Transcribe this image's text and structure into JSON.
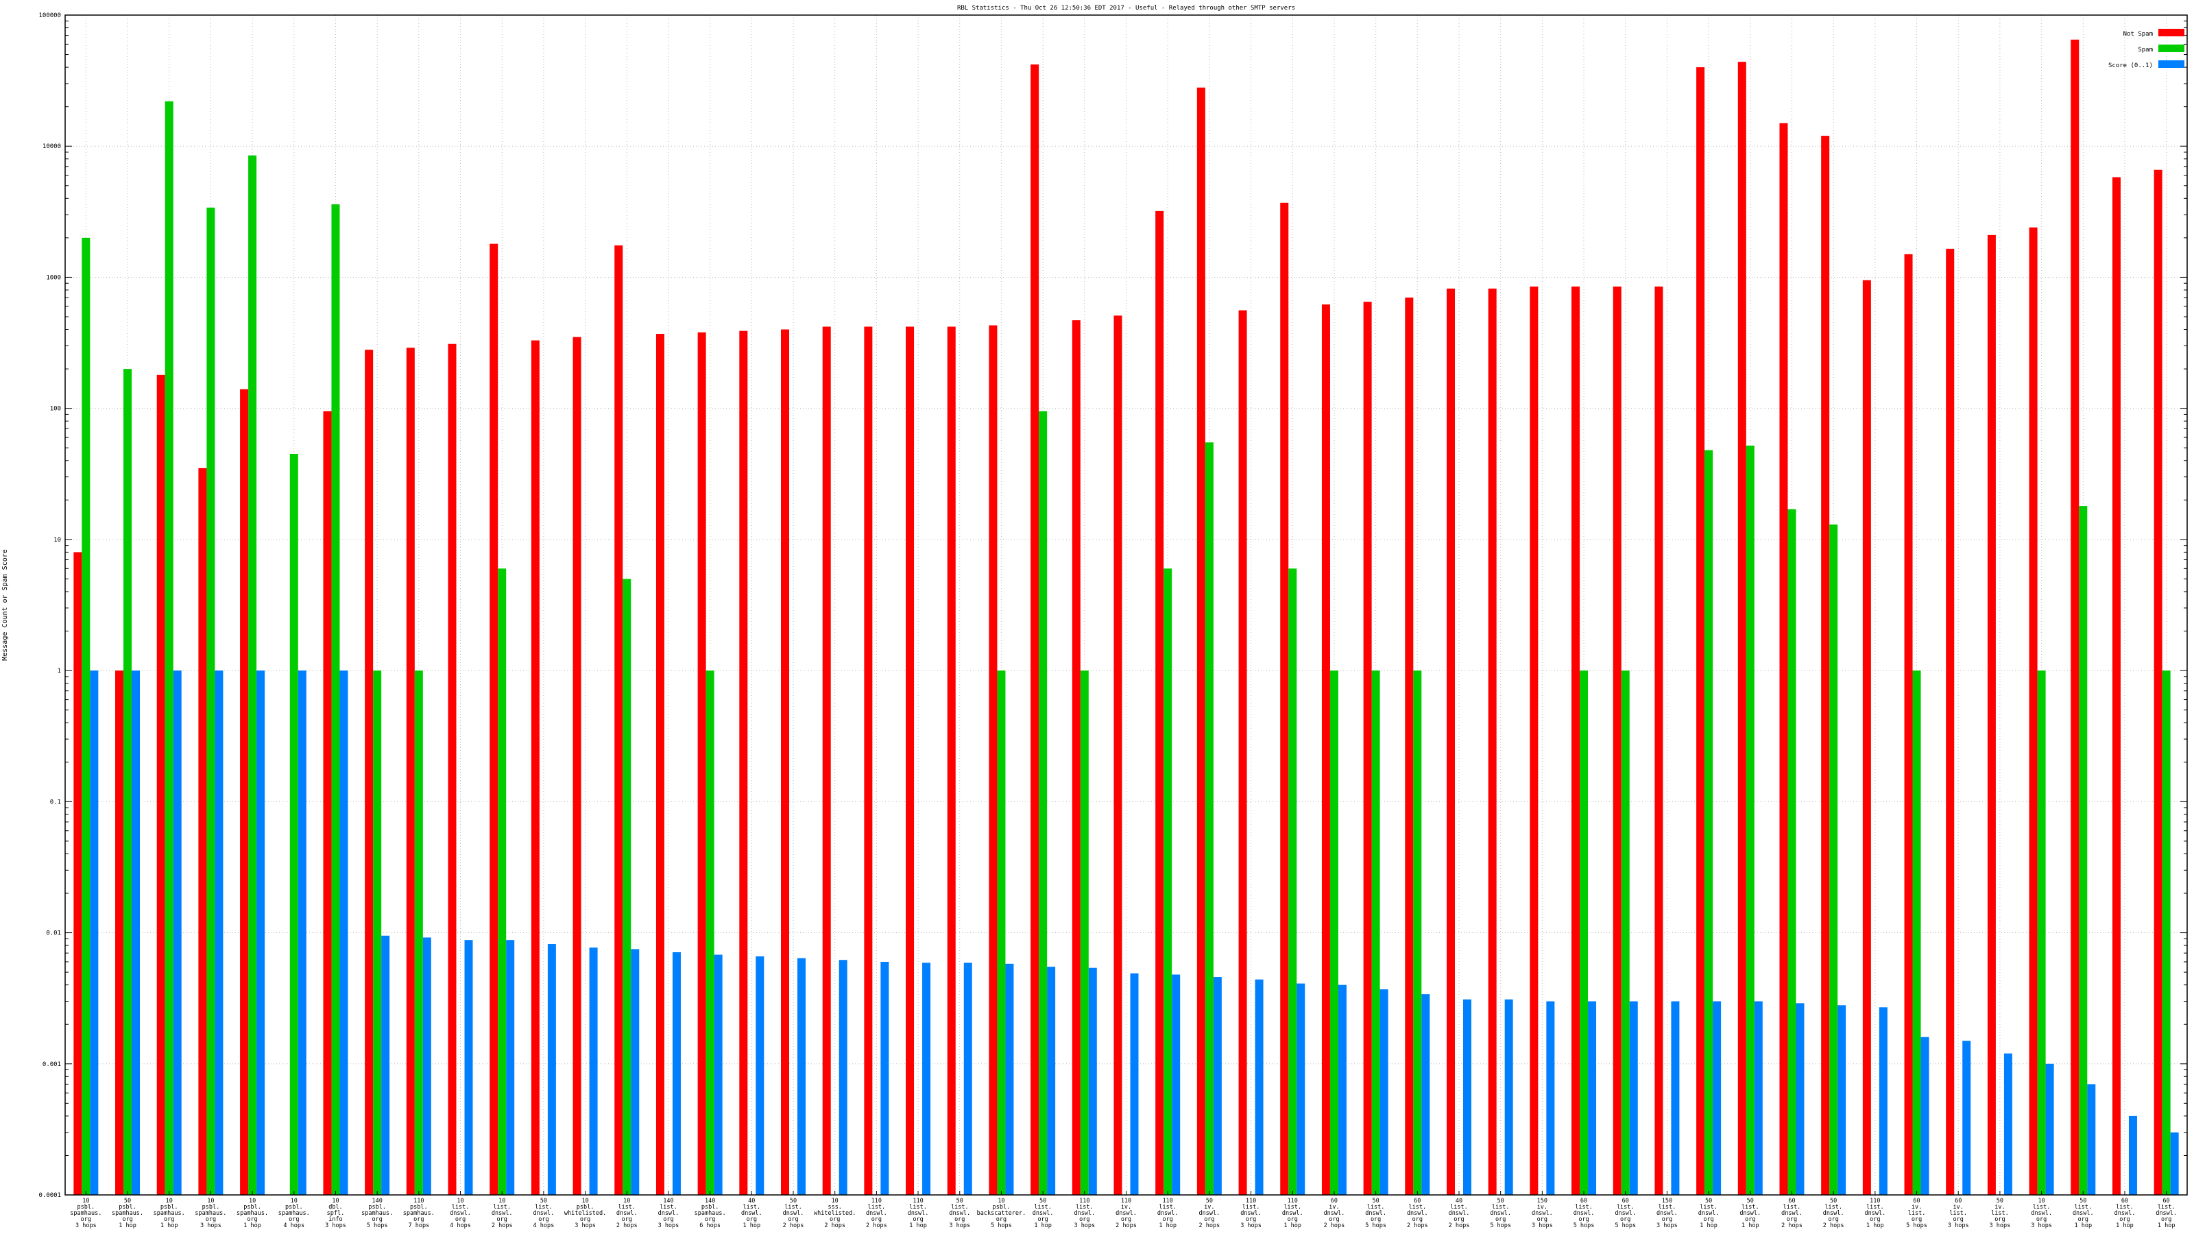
{
  "chart_data": {
    "type": "bar",
    "title": "RBL Statistics - Thu Oct 26 12:50:36 EDT 2017 - Useful - Relayed through other SMTP servers",
    "xlabel": "",
    "ylabel": "Message Count or Spam Score",
    "yscale": "log",
    "ylim": [
      0.0001,
      100000
    ],
    "yticks": [
      "0.0001",
      "0.001",
      "0.01",
      "0.1",
      "1",
      "10",
      "100",
      "1000",
      "10000",
      "100000"
    ],
    "grid": true,
    "legend_position": "top-right",
    "categories": [
      [
        "10",
        "psbl.",
        "spamhaus.",
        "org",
        "3 hops"
      ],
      [
        "50",
        "psbl.",
        "spamhaus.",
        "org",
        "1 hop"
      ],
      [
        "10",
        "psbl.",
        "spamhaus.",
        "org",
        "1 hop"
      ],
      [
        "10",
        "psbl.",
        "spamhaus.",
        "org",
        "3 hops"
      ],
      [
        "10",
        "psbl.",
        "spamhaus.",
        "org",
        "1 hop"
      ],
      [
        "10",
        "psbl.",
        "spamhaus.",
        "org",
        "4 hops"
      ],
      [
        "10",
        "dbl.",
        "spfl.",
        "info",
        "3 hops"
      ],
      [
        "140",
        "psbl.",
        "spamhaus.",
        "org",
        "5 hops"
      ],
      [
        "110",
        "psbl.",
        "spamhaus.",
        "org",
        "7 hops"
      ],
      [
        "10",
        "list.",
        "dnswl.",
        "org",
        "4 hops"
      ],
      [
        "10",
        "list.",
        "dnswl.",
        "org",
        "2 hops"
      ],
      [
        "50",
        "list.",
        "dnswl.",
        "org",
        "4 hops"
      ],
      [
        "10",
        "psbl.",
        "whitelisted.",
        "org",
        "3 hops"
      ],
      [
        "10",
        "list.",
        "dnswl.",
        "org",
        "2 hops"
      ],
      [
        "140",
        "list.",
        "dnswl.",
        "org",
        "3 hops"
      ],
      [
        "140",
        "psbl.",
        "spamhaus.",
        "org",
        "6 hops"
      ],
      [
        "40",
        "list.",
        "dnswl.",
        "org",
        "1 hop"
      ],
      [
        "50",
        "list.",
        "dnswl.",
        "org",
        "2 hops"
      ],
      [
        "10",
        "sss.",
        "whitelisted.",
        "org",
        "2 hops"
      ],
      [
        "110",
        "list.",
        "dnswl.",
        "org",
        "2 hops"
      ],
      [
        "110",
        "list.",
        "dnswl.",
        "org",
        "1 hop"
      ],
      [
        "50",
        "list.",
        "dnswl.",
        "org",
        "3 hops"
      ],
      [
        "10",
        "psbl.",
        "backscatterer.",
        "org",
        "5 hops"
      ],
      [
        "50",
        "list.",
        "dnswl.",
        "org",
        "1 hop"
      ],
      [
        "110",
        "list.",
        "dnswl.",
        "org",
        "3 hops"
      ],
      [
        "110",
        "iv.",
        "dnswl.",
        "org",
        "2 hops"
      ],
      [
        "110",
        "list.",
        "dnswl.",
        "org",
        "1 hop"
      ],
      [
        "50",
        "iv.",
        "dnswl.",
        "org",
        "2 hops"
      ],
      [
        "110",
        "list.",
        "dnswl.",
        "org",
        "3 hops"
      ],
      [
        "110",
        "list.",
        "dnswl.",
        "org",
        "1 hop"
      ],
      [
        "60",
        "iv.",
        "dnswl.",
        "org",
        "2 hops"
      ],
      [
        "50",
        "list.",
        "dnswl.",
        "org",
        "5 hops"
      ],
      [
        "60",
        "list.",
        "dnswl.",
        "org",
        "2 hops"
      ],
      [
        "40",
        "list.",
        "dnswl.",
        "org",
        "2 hops"
      ],
      [
        "50",
        "list.",
        "dnswl.",
        "org",
        "5 hops"
      ],
      [
        "150",
        "iv.",
        "dnswl.",
        "org",
        "3 hops"
      ],
      [
        "60",
        "list.",
        "dnswl.",
        "org",
        "5 hops"
      ],
      [
        "60",
        "list.",
        "dnswl.",
        "org",
        "5 hops"
      ],
      [
        "150",
        "list.",
        "dnswl.",
        "org",
        "3 hops"
      ],
      [
        "50",
        "list.",
        "dnswl.",
        "org",
        "1 hop"
      ],
      [
        "50",
        "list.",
        "dnswl.",
        "org",
        "1 hop"
      ],
      [
        "60",
        "list.",
        "dnswl.",
        "org",
        "2 hops"
      ],
      [
        "50",
        "list.",
        "dnswl.",
        "org",
        "2 hops"
      ],
      [
        "110",
        "list.",
        "dnswl.",
        "org",
        "1 hop"
      ],
      [
        "60",
        "iv.",
        "list.",
        "org",
        "5 hops"
      ],
      [
        "60",
        "iv.",
        "list.",
        "org",
        "3 hops"
      ],
      [
        "50",
        "iv.",
        "list.",
        "org",
        "3 hops"
      ],
      [
        "10",
        "list.",
        "dnswl.",
        "org",
        "3 hops"
      ],
      [
        "50",
        "list.",
        "dnswl.",
        "org",
        "1 hop"
      ],
      [
        "60",
        "list.",
        "dnswl.",
        "org",
        "1 hop"
      ],
      [
        "60",
        "list.",
        "dnswl.",
        "org",
        "1 hop"
      ]
    ],
    "series": [
      {
        "name": "Not Spam",
        "color": "#ff0000",
        "values": [
          8,
          1,
          180,
          35,
          140,
          null,
          95,
          280,
          290,
          310,
          1800,
          330,
          350,
          1750,
          370,
          380,
          390,
          400,
          420,
          420,
          420,
          420,
          430,
          42000,
          470,
          510,
          3200,
          28000,
          560,
          3700,
          620,
          650,
          700,
          820,
          820,
          850,
          850,
          850,
          850,
          40000,
          44000,
          15000,
          12000,
          950,
          1500,
          1650,
          2100,
          2400,
          65000,
          5800,
          6600
        ]
      },
      {
        "name": "Spam",
        "color": "#00cc00",
        "values": [
          2000,
          200,
          22000,
          3400,
          8500,
          45,
          3600,
          1,
          1,
          null,
          6,
          null,
          null,
          5,
          null,
          1,
          null,
          null,
          null,
          null,
          null,
          null,
          1,
          95,
          1,
          null,
          6,
          55,
          null,
          6,
          1,
          1,
          1,
          null,
          null,
          null,
          1,
          1,
          null,
          48,
          52,
          17,
          13,
          null,
          1,
          null,
          null,
          1,
          18,
          null,
          1
        ]
      },
      {
        "name": "Score (0..1)",
        "color": "#0080ff",
        "values": [
          1,
          1,
          1,
          1,
          1,
          1,
          1,
          0.0095,
          0.0092,
          0.0088,
          0.0088,
          0.0082,
          0.0077,
          0.0075,
          0.0071,
          0.0068,
          0.0066,
          0.0064,
          0.0062,
          0.006,
          0.0059,
          0.0059,
          0.0058,
          0.0055,
          0.0054,
          0.0049,
          0.0048,
          0.0046,
          0.0044,
          0.0041,
          0.004,
          0.0037,
          0.0034,
          0.0031,
          0.0031,
          0.003,
          0.003,
          0.003,
          0.003,
          0.003,
          0.003,
          0.0029,
          0.0028,
          0.0027,
          0.0016,
          0.0015,
          0.0012,
          0.001,
          0.0007,
          0.0004,
          0.0003
        ]
      }
    ]
  }
}
